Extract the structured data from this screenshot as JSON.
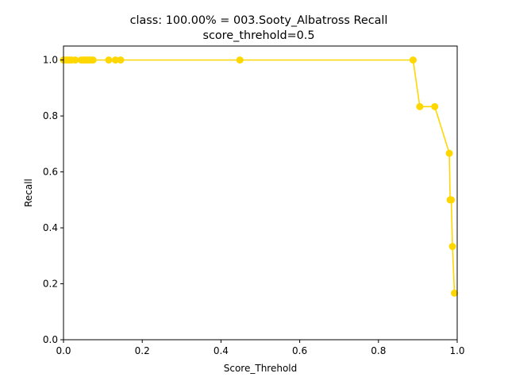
{
  "chart_data": {
    "type": "line",
    "title": "class: 100.00% = 003.Sooty_Albatross Recall",
    "subtitle": "score_threhold=0.5",
    "xlabel": "Score_Threhold",
    "ylabel": "Recall",
    "xlim": [
      0.0,
      1.0
    ],
    "ylim": [
      0.0,
      1.05
    ],
    "xticks": [
      0.0,
      0.2,
      0.4,
      0.6,
      0.8,
      1.0
    ],
    "xtick_labels": [
      "0.0",
      "0.2",
      "0.4",
      "0.6",
      "0.8",
      "1.0"
    ],
    "yticks": [
      0.0,
      0.2,
      0.4,
      0.6,
      0.8,
      1.0
    ],
    "ytick_labels": [
      "0.0",
      "0.2",
      "0.4",
      "0.6",
      "0.8",
      "1.0"
    ],
    "grid": false,
    "color": "#ffd700",
    "series": [
      {
        "x": [
          0.0,
          0.005,
          0.01,
          0.015,
          0.02,
          0.03,
          0.045,
          0.05,
          0.055,
          0.06,
          0.065,
          0.07,
          0.075,
          0.115,
          0.132,
          0.145,
          0.448,
          0.888,
          0.905,
          0.943,
          0.98,
          0.982,
          0.985,
          0.988,
          0.993
        ],
        "y": [
          1.0,
          1.0,
          1.0,
          1.0,
          1.0,
          1.0,
          1.0,
          1.0,
          1.0,
          1.0,
          1.0,
          1.0,
          1.0,
          1.0,
          1.0,
          1.0,
          1.0,
          1.0,
          0.8333,
          0.8333,
          0.6667,
          0.5,
          0.5,
          0.3333,
          0.1667
        ]
      }
    ]
  }
}
